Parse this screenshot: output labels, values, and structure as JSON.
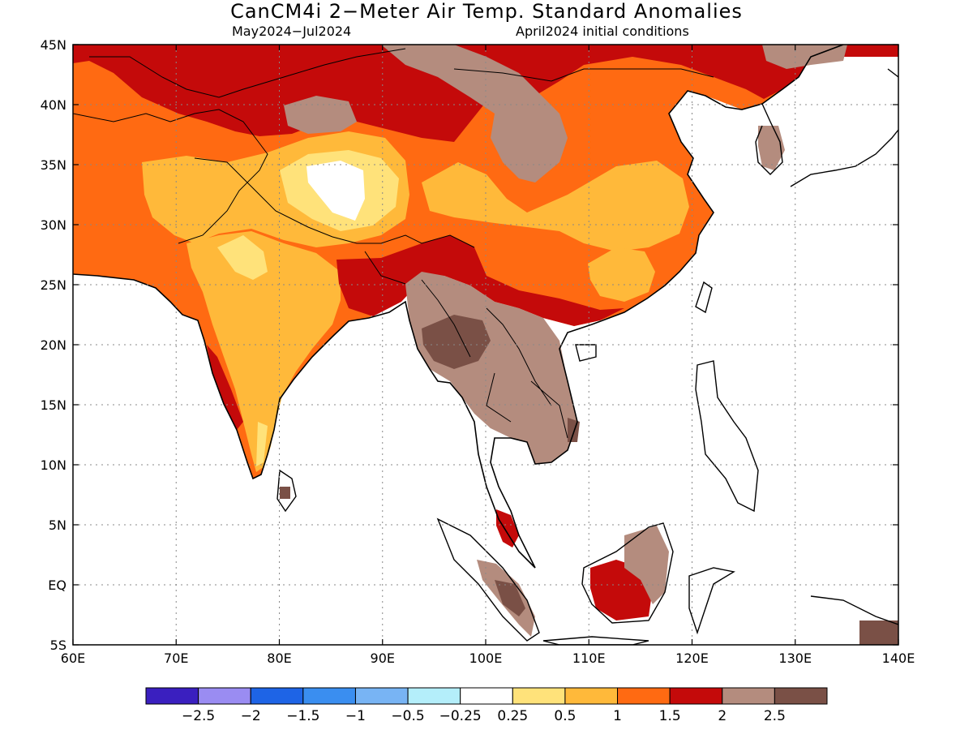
{
  "header": {
    "title": "CanCM4i 2−Meter Air Temp. Standard Anomalies",
    "subtitle_left": "May2024−Jul2024",
    "subtitle_right": "April2024 initial conditions"
  },
  "map": {
    "lon_range": [
      60,
      140
    ],
    "lat_range": [
      -5,
      45
    ],
    "lon_ticks": [
      {
        "value": 60,
        "label": "60E"
      },
      {
        "value": 70,
        "label": "70E"
      },
      {
        "value": 80,
        "label": "80E"
      },
      {
        "value": 90,
        "label": "90E"
      },
      {
        "value": 100,
        "label": "100E"
      },
      {
        "value": 110,
        "label": "110E"
      },
      {
        "value": 120,
        "label": "120E"
      },
      {
        "value": 130,
        "label": "130E"
      },
      {
        "value": 140,
        "label": "140E"
      }
    ],
    "lat_ticks": [
      {
        "value": 45,
        "label": "45N"
      },
      {
        "value": 40,
        "label": "40N"
      },
      {
        "value": 35,
        "label": "35N"
      },
      {
        "value": 30,
        "label": "30N"
      },
      {
        "value": 25,
        "label": "25N"
      },
      {
        "value": 20,
        "label": "20N"
      },
      {
        "value": 15,
        "label": "15N"
      },
      {
        "value": 10,
        "label": "10N"
      },
      {
        "value": 5,
        "label": "5N"
      },
      {
        "value": 0,
        "label": "EQ"
      },
      {
        "value": -5,
        "label": "5S"
      }
    ],
    "grid": "dotted"
  },
  "colorbar": {
    "bins": [
      {
        "color": "#3a1fbf"
      },
      {
        "color": "#9a8cf2"
      },
      {
        "color": "#1e64e6"
      },
      {
        "color": "#3a8ef0"
      },
      {
        "color": "#78b4f4"
      },
      {
        "color": "#b4eefa"
      },
      {
        "color": "#ffffff"
      },
      {
        "color": "#ffe27a"
      },
      {
        "color": "#ffb93a"
      },
      {
        "color": "#ff6a12"
      },
      {
        "color": "#c40a0a"
      },
      {
        "color": "#b48c7e"
      },
      {
        "color": "#7a5046"
      }
    ],
    "labels": [
      "−2.5",
      "−2",
      "−1.5",
      "−1",
      "−0.5",
      "−0.25",
      "0.25",
      "0.5",
      "1",
      "1.5",
      "2",
      "2.5"
    ]
  }
}
